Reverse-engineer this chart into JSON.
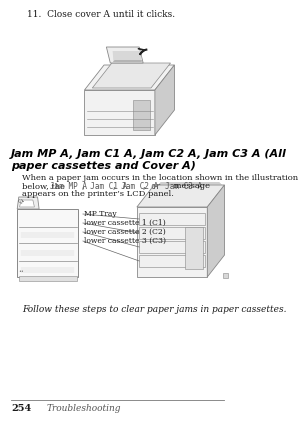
{
  "bg_color": "#ffffff",
  "step_text": "11.  Close cover A until it clicks.",
  "section_title_line1": "Jam MP A, Jam C1 A, Jam C2 A, Jam C3 A (All",
  "section_title_line2": "paper cassettes and Cover A)",
  "body_line1": "When a paper jam occurs in the location shown in the illustration",
  "body_line2": "below, the Jam MP A, Jam C1 A, Jam C2 A, or Jam C3 A message",
  "body_line3": "appears on the printer’s LCD panel.",
  "label1": "MP Tray",
  "label2": "lower cassette 1 (C1)",
  "label3": "lower cassette 2 (C2)",
  "label4": "lower cassette 3 (C3)",
  "follow_text": "Follow these steps to clear paper jams in paper cassettes.",
  "footer_page": "254",
  "footer_section": "Troubleshooting",
  "text_color": "#1a1a1a",
  "mono_color": "#555555",
  "line_color": "#555555",
  "footer_line_color": "#777777",
  "printer_edge": "#888888",
  "printer_fill": "#f2f2f2",
  "printer_dark": "#cccccc"
}
